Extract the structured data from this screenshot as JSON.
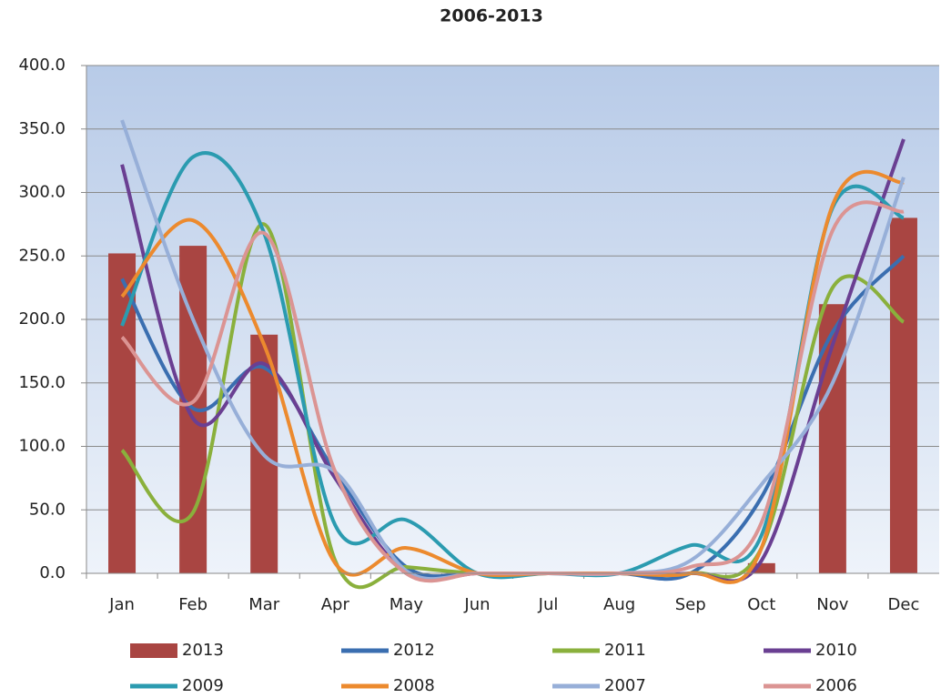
{
  "chart_data": {
    "type": "bar",
    "title": "2006-2013",
    "categories": [
      "Jan",
      "Feb",
      "Mar",
      "Apr",
      "May",
      "Jun",
      "Jul",
      "Aug",
      "Sep",
      "Oct",
      "Nov",
      "Dec"
    ],
    "ylim": [
      0,
      400
    ],
    "yticks": [
      {
        "value": 0,
        "label": "0.0"
      },
      {
        "value": 50,
        "label": "50.0"
      },
      {
        "value": 100,
        "label": "100.0"
      },
      {
        "value": 150,
        "label": "150.0"
      },
      {
        "value": 200,
        "label": "200.0"
      },
      {
        "value": 250,
        "label": "250.0"
      },
      {
        "value": 300,
        "label": "300.0"
      },
      {
        "value": 350,
        "label": "350.0"
      },
      {
        "value": 400,
        "label": "400.0"
      }
    ],
    "grid": true,
    "series": [
      {
        "name": "2013",
        "type": "bar",
        "color": "#a94542",
        "values": [
          252,
          258,
          188,
          0,
          0,
          0,
          0,
          0,
          0,
          8,
          212,
          280
        ]
      },
      {
        "name": "2012",
        "type": "line",
        "color": "#3a6eb0",
        "values": [
          232,
          130,
          162,
          80,
          5,
          0,
          0,
          0,
          0,
          60,
          190,
          250
        ]
      },
      {
        "name": "2011",
        "type": "line",
        "color": "#8ab03c",
        "values": [
          97,
          48,
          275,
          10,
          5,
          0,
          0,
          0,
          0,
          20,
          225,
          198
        ]
      },
      {
        "name": "2010",
        "type": "line",
        "color": "#6a3f92",
        "values": [
          322,
          122,
          165,
          75,
          0,
          0,
          0,
          0,
          0,
          10,
          180,
          342
        ]
      },
      {
        "name": "2009",
        "type": "line",
        "color": "#2b9bb0",
        "values": [
          195,
          328,
          268,
          38,
          42,
          0,
          0,
          0,
          22,
          30,
          288,
          280
        ]
      },
      {
        "name": "2008",
        "type": "line",
        "color": "#ec8a2e",
        "values": [
          218,
          278,
          180,
          8,
          20,
          0,
          0,
          0,
          0,
          20,
          290,
          308
        ]
      },
      {
        "name": "2007",
        "type": "line",
        "color": "#97afd8",
        "values": [
          357,
          200,
          93,
          80,
          2,
          0,
          0,
          0,
          10,
          70,
          150,
          312
        ]
      },
      {
        "name": "2006",
        "type": "line",
        "color": "#db9493",
        "values": [
          186,
          135,
          268,
          80,
          0,
          0,
          0,
          0,
          5,
          40,
          270,
          285
        ]
      }
    ]
  }
}
